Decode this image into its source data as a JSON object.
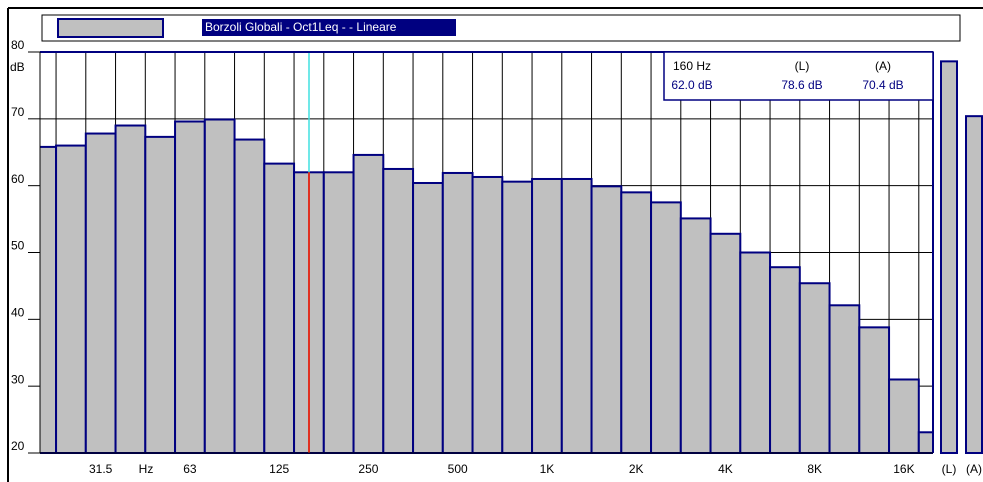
{
  "chart_data": {
    "type": "bar",
    "title": "Borzoli Globali - Oct1Leq -  - Lineare",
    "categories": [
      null,
      null,
      "31.5",
      null,
      null,
      "63",
      null,
      null,
      "125",
      null,
      null,
      "250",
      null,
      null,
      "500",
      null,
      null,
      "1K",
      null,
      null,
      "2K",
      null,
      null,
      "4K",
      null,
      null,
      "8K",
      null,
      null,
      "16K",
      null
    ],
    "values": [
      65.8,
      66.0,
      67.8,
      69.0,
      67.3,
      69.6,
      69.9,
      66.9,
      63.3,
      62.0,
      62.0,
      64.6,
      62.5,
      60.4,
      61.9,
      61.3,
      60.6,
      61.0,
      61.0,
      59.9,
      59.0,
      57.5,
      55.1,
      52.8,
      50.0,
      47.8,
      45.4,
      42.1,
      38.8,
      31.0,
      23.1
    ],
    "color": "#c0c0c0",
    "edge_color": "#000080",
    "ylim": [
      20,
      80
    ],
    "yticks": [
      20,
      30,
      40,
      50,
      60,
      70,
      80
    ],
    "grid": true,
    "y_label": "dB",
    "x_label": "Hz",
    "totals": {
      "categories": [
        "(L)",
        "(A)"
      ],
      "values": [
        78.6,
        70.4
      ]
    },
    "readout": {
      "header": [
        "160 Hz",
        "(L)",
        "(A)"
      ],
      "values": [
        "62.0 dB",
        "78.6 dB",
        "70.4 dB"
      ]
    }
  }
}
